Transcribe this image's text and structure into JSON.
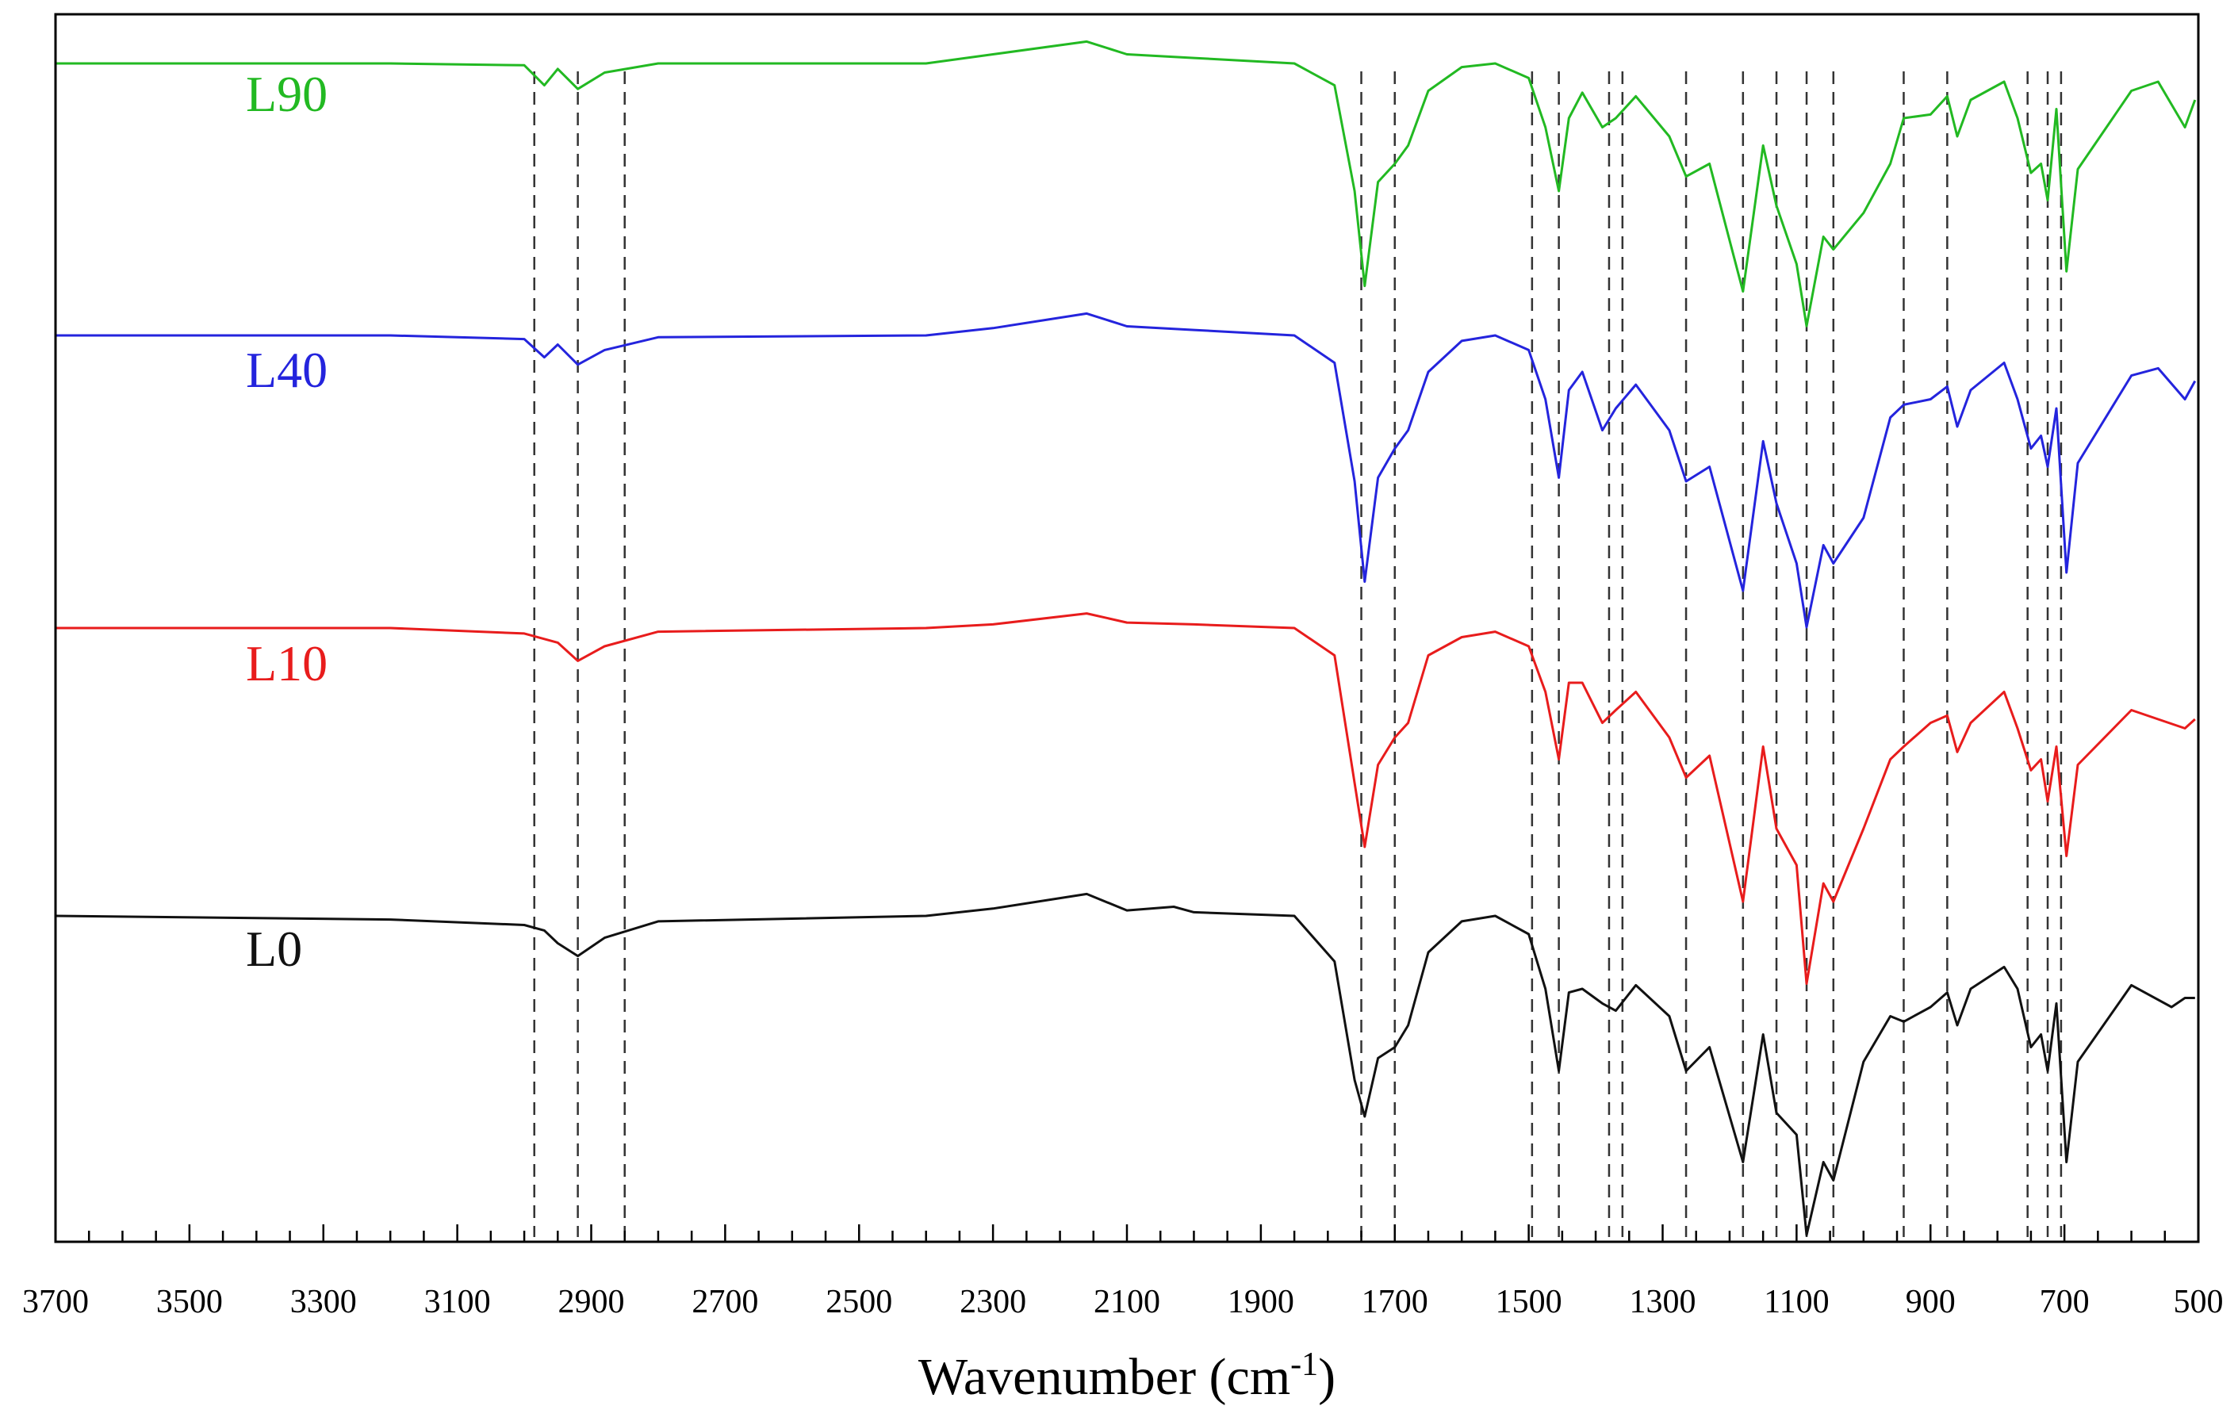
{
  "chart_data": {
    "type": "line",
    "xlabel": "Wavenumber (cm",
    "xlabel_superscript": "-1",
    "xlabel_close": ")",
    "x_range": [
      3700,
      500
    ],
    "x_reversed": true,
    "xticks": [
      3700,
      3500,
      3300,
      3100,
      2900,
      2700,
      2500,
      2300,
      2100,
      1900,
      1700,
      1500,
      1300,
      1100,
      900,
      700,
      500
    ],
    "grid": false,
    "y_axis_shown": false,
    "stacked_offset_traces": true,
    "reference_lines_cm1": [
      2985,
      2920,
      2850,
      1750,
      1700,
      1495,
      1455,
      1380,
      1360,
      1265,
      1180,
      1130,
      1085,
      1045,
      940,
      875,
      755,
      725,
      705
    ],
    "series": [
      {
        "name": "L90",
        "color": "#22b922",
        "points": [
          [
            3700,
            0.0
          ],
          [
            3200,
            0.0
          ],
          [
            3000,
            0.01
          ],
          [
            2970,
            0.12
          ],
          [
            2950,
            0.03
          ],
          [
            2920,
            0.14
          ],
          [
            2880,
            0.05
          ],
          [
            2800,
            0.0
          ],
          [
            2400,
            0.0
          ],
          [
            2300,
            -0.05
          ],
          [
            2160,
            -0.12
          ],
          [
            2100,
            -0.05
          ],
          [
            2000,
            -0.03
          ],
          [
            1850,
            0.0
          ],
          [
            1790,
            0.12
          ],
          [
            1760,
            0.7
          ],
          [
            1745,
            1.22
          ],
          [
            1725,
            0.65
          ],
          [
            1700,
            0.55
          ],
          [
            1680,
            0.45
          ],
          [
            1650,
            0.15
          ],
          [
            1600,
            0.02
          ],
          [
            1550,
            0.0
          ],
          [
            1500,
            0.08
          ],
          [
            1475,
            0.35
          ],
          [
            1455,
            0.7
          ],
          [
            1440,
            0.3
          ],
          [
            1420,
            0.16
          ],
          [
            1390,
            0.35
          ],
          [
            1370,
            0.3
          ],
          [
            1340,
            0.18
          ],
          [
            1290,
            0.4
          ],
          [
            1265,
            0.62
          ],
          [
            1230,
            0.55
          ],
          [
            1180,
            1.25
          ],
          [
            1150,
            0.45
          ],
          [
            1130,
            0.78
          ],
          [
            1100,
            1.1
          ],
          [
            1085,
            1.44
          ],
          [
            1060,
            0.95
          ],
          [
            1045,
            1.02
          ],
          [
            1000,
            0.82
          ],
          [
            960,
            0.55
          ],
          [
            940,
            0.3
          ],
          [
            900,
            0.28
          ],
          [
            875,
            0.18
          ],
          [
            860,
            0.4
          ],
          [
            840,
            0.2
          ],
          [
            790,
            0.1
          ],
          [
            770,
            0.3
          ],
          [
            750,
            0.6
          ],
          [
            735,
            0.55
          ],
          [
            725,
            0.75
          ],
          [
            712,
            0.25
          ],
          [
            697,
            1.14
          ],
          [
            680,
            0.58
          ],
          [
            600,
            0.15
          ],
          [
            560,
            0.1
          ],
          [
            520,
            0.35
          ],
          [
            505,
            0.2
          ]
        ]
      },
      {
        "name": "L40",
        "color": "#2424dd",
        "points": [
          [
            3700,
            0.0
          ],
          [
            3200,
            0.0
          ],
          [
            3000,
            0.02
          ],
          [
            2970,
            0.12
          ],
          [
            2950,
            0.05
          ],
          [
            2920,
            0.16
          ],
          [
            2880,
            0.08
          ],
          [
            2800,
            0.01
          ],
          [
            2400,
            0.0
          ],
          [
            2300,
            -0.04
          ],
          [
            2160,
            -0.12
          ],
          [
            2100,
            -0.05
          ],
          [
            2000,
            -0.03
          ],
          [
            1850,
            0.0
          ],
          [
            1790,
            0.15
          ],
          [
            1760,
            0.8
          ],
          [
            1745,
            1.35
          ],
          [
            1725,
            0.78
          ],
          [
            1700,
            0.62
          ],
          [
            1680,
            0.52
          ],
          [
            1650,
            0.2
          ],
          [
            1600,
            0.03
          ],
          [
            1550,
            0.0
          ],
          [
            1500,
            0.08
          ],
          [
            1475,
            0.35
          ],
          [
            1455,
            0.78
          ],
          [
            1440,
            0.3
          ],
          [
            1420,
            0.2
          ],
          [
            1390,
            0.52
          ],
          [
            1370,
            0.4
          ],
          [
            1340,
            0.27
          ],
          [
            1290,
            0.52
          ],
          [
            1265,
            0.8
          ],
          [
            1230,
            0.72
          ],
          [
            1180,
            1.4
          ],
          [
            1150,
            0.58
          ],
          [
            1130,
            0.92
          ],
          [
            1100,
            1.25
          ],
          [
            1085,
            1.6
          ],
          [
            1060,
            1.15
          ],
          [
            1045,
            1.25
          ],
          [
            1000,
            1.0
          ],
          [
            960,
            0.45
          ],
          [
            940,
            0.38
          ],
          [
            900,
            0.35
          ],
          [
            875,
            0.28
          ],
          [
            860,
            0.5
          ],
          [
            840,
            0.3
          ],
          [
            790,
            0.15
          ],
          [
            770,
            0.35
          ],
          [
            750,
            0.62
          ],
          [
            735,
            0.55
          ],
          [
            725,
            0.72
          ],
          [
            712,
            0.4
          ],
          [
            697,
            1.3
          ],
          [
            680,
            0.7
          ],
          [
            600,
            0.22
          ],
          [
            560,
            0.18
          ],
          [
            520,
            0.35
          ],
          [
            505,
            0.25
          ]
        ]
      },
      {
        "name": "L10",
        "color": "#e81c1c",
        "points": [
          [
            3700,
            0.0
          ],
          [
            3200,
            0.0
          ],
          [
            3000,
            0.03
          ],
          [
            2950,
            0.08
          ],
          [
            2920,
            0.18
          ],
          [
            2880,
            0.1
          ],
          [
            2800,
            0.02
          ],
          [
            2400,
            0.0
          ],
          [
            2300,
            -0.02
          ],
          [
            2160,
            -0.08
          ],
          [
            2100,
            -0.03
          ],
          [
            2000,
            -0.02
          ],
          [
            1850,
            0.0
          ],
          [
            1790,
            0.15
          ],
          [
            1760,
            0.85
          ],
          [
            1745,
            1.2
          ],
          [
            1725,
            0.75
          ],
          [
            1700,
            0.6
          ],
          [
            1680,
            0.52
          ],
          [
            1650,
            0.15
          ],
          [
            1600,
            0.05
          ],
          [
            1550,
            0.02
          ],
          [
            1500,
            0.1
          ],
          [
            1475,
            0.35
          ],
          [
            1455,
            0.72
          ],
          [
            1440,
            0.3
          ],
          [
            1420,
            0.3
          ],
          [
            1390,
            0.52
          ],
          [
            1370,
            0.45
          ],
          [
            1340,
            0.35
          ],
          [
            1290,
            0.6
          ],
          [
            1265,
            0.82
          ],
          [
            1230,
            0.7
          ],
          [
            1180,
            1.5
          ],
          [
            1150,
            0.65
          ],
          [
            1130,
            1.1
          ],
          [
            1100,
            1.3
          ],
          [
            1085,
            1.95
          ],
          [
            1060,
            1.4
          ],
          [
            1045,
            1.5
          ],
          [
            1000,
            1.1
          ],
          [
            960,
            0.72
          ],
          [
            940,
            0.65
          ],
          [
            900,
            0.52
          ],
          [
            875,
            0.48
          ],
          [
            860,
            0.68
          ],
          [
            840,
            0.52
          ],
          [
            790,
            0.35
          ],
          [
            770,
            0.55
          ],
          [
            750,
            0.78
          ],
          [
            735,
            0.72
          ],
          [
            725,
            0.95
          ],
          [
            712,
            0.65
          ],
          [
            697,
            1.25
          ],
          [
            680,
            0.75
          ],
          [
            600,
            0.45
          ],
          [
            560,
            0.5
          ],
          [
            520,
            0.55
          ],
          [
            505,
            0.5
          ]
        ]
      },
      {
        "name": "L0",
        "color": "#111111",
        "points": [
          [
            3700,
            0.0
          ],
          [
            3200,
            0.02
          ],
          [
            3000,
            0.05
          ],
          [
            2970,
            0.08
          ],
          [
            2950,
            0.15
          ],
          [
            2920,
            0.22
          ],
          [
            2880,
            0.12
          ],
          [
            2800,
            0.03
          ],
          [
            2400,
            0.0
          ],
          [
            2300,
            -0.04
          ],
          [
            2160,
            -0.12
          ],
          [
            2100,
            -0.03
          ],
          [
            2030,
            -0.05
          ],
          [
            2000,
            -0.02
          ],
          [
            1850,
            0.0
          ],
          [
            1790,
            0.25
          ],
          [
            1760,
            0.9
          ],
          [
            1745,
            1.1
          ],
          [
            1725,
            0.78
          ],
          [
            1700,
            0.72
          ],
          [
            1680,
            0.6
          ],
          [
            1650,
            0.2
          ],
          [
            1600,
            0.03
          ],
          [
            1550,
            0.0
          ],
          [
            1500,
            0.1
          ],
          [
            1475,
            0.4
          ],
          [
            1455,
            0.85
          ],
          [
            1440,
            0.42
          ],
          [
            1420,
            0.4
          ],
          [
            1390,
            0.48
          ],
          [
            1370,
            0.52
          ],
          [
            1340,
            0.38
          ],
          [
            1290,
            0.55
          ],
          [
            1265,
            0.85
          ],
          [
            1230,
            0.72
          ],
          [
            1180,
            1.35
          ],
          [
            1150,
            0.65
          ],
          [
            1130,
            1.08
          ],
          [
            1100,
            1.2
          ],
          [
            1085,
            1.75
          ],
          [
            1060,
            1.35
          ],
          [
            1045,
            1.45
          ],
          [
            1000,
            0.8
          ],
          [
            960,
            0.55
          ],
          [
            940,
            0.58
          ],
          [
            900,
            0.5
          ],
          [
            875,
            0.42
          ],
          [
            860,
            0.6
          ],
          [
            840,
            0.4
          ],
          [
            790,
            0.28
          ],
          [
            770,
            0.4
          ],
          [
            750,
            0.72
          ],
          [
            735,
            0.65
          ],
          [
            725,
            0.85
          ],
          [
            712,
            0.48
          ],
          [
            697,
            1.35
          ],
          [
            680,
            0.8
          ],
          [
            600,
            0.38
          ],
          [
            540,
            0.5
          ],
          [
            520,
            0.45
          ],
          [
            505,
            0.45
          ]
        ]
      }
    ]
  }
}
